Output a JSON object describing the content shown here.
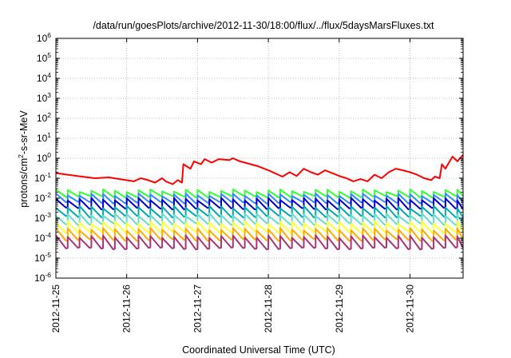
{
  "chart_data": {
    "type": "line",
    "title": "/data/run/goesPlots/archive/2012-11-30/18:00/flux/../flux/5daysMarsFluxes.txt",
    "xlabel": "Coordinated Universal Time (UTC)",
    "ylabel": "protons/cm²-s-sr-MeV",
    "ylabel_parts": {
      "pre": "protons/cm",
      "sup": "2",
      "post": "-s-sr-MeV"
    },
    "yscale": "log",
    "ylim": [
      1e-06,
      1000000.0
    ],
    "xlim": [
      "2012-11-25",
      "2012-11-30 18:00"
    ],
    "grid": true,
    "x_tick_labels": [
      "2012-11-25",
      "2012-11-26",
      "2012-11-27",
      "2012-11-28",
      "2012-11-29",
      "2012-11-30"
    ],
    "y_ticks": [
      {
        "base": "10",
        "exp": "-6"
      },
      {
        "base": "10",
        "exp": "-5"
      },
      {
        "base": "10",
        "exp": "-4"
      },
      {
        "base": "10",
        "exp": "-3"
      },
      {
        "base": "10",
        "exp": "-2"
      },
      {
        "base": "10",
        "exp": "-1"
      },
      {
        "base": "10",
        "exp": "0"
      },
      {
        "base": "10",
        "exp": "1"
      },
      {
        "base": "10",
        "exp": "2"
      },
      {
        "base": "10",
        "exp": "3"
      },
      {
        "base": "10",
        "exp": "4"
      },
      {
        "base": "10",
        "exp": "5"
      },
      {
        "base": "10",
        "exp": "6"
      }
    ],
    "x_days_total": 5.75,
    "series": [
      {
        "color": "#ff0000",
        "points": [
          [
            0,
            0.18
          ],
          [
            0.3,
            0.13
          ],
          [
            0.55,
            0.1
          ],
          [
            0.75,
            0.11
          ],
          [
            0.9,
            0.09
          ],
          [
            1.1,
            0.07
          ],
          [
            1.2,
            0.1
          ],
          [
            1.3,
            0.08
          ],
          [
            1.4,
            0.06
          ],
          [
            1.5,
            0.1
          ],
          [
            1.55,
            0.07
          ],
          [
            1.65,
            0.05
          ],
          [
            1.72,
            0.08
          ],
          [
            1.78,
            0.06
          ],
          [
            1.8,
            0.5
          ],
          [
            1.9,
            0.3
          ],
          [
            1.95,
            0.7
          ],
          [
            2.05,
            0.5
          ],
          [
            2.1,
            0.9
          ],
          [
            2.2,
            0.6
          ],
          [
            2.3,
            0.9
          ],
          [
            2.45,
            0.8
          ],
          [
            2.5,
            1.0
          ],
          [
            2.6,
            0.7
          ],
          [
            2.75,
            0.5
          ],
          [
            2.85,
            0.4
          ],
          [
            3.0,
            0.25
          ],
          [
            3.2,
            0.12
          ],
          [
            3.3,
            0.2
          ],
          [
            3.4,
            0.13
          ],
          [
            3.5,
            0.3
          ],
          [
            3.6,
            0.2
          ],
          [
            3.7,
            0.15
          ],
          [
            3.8,
            0.25
          ],
          [
            3.9,
            0.18
          ],
          [
            4.0,
            0.13
          ],
          [
            4.1,
            0.1
          ],
          [
            4.2,
            0.07
          ],
          [
            4.3,
            0.09
          ],
          [
            4.4,
            0.07
          ],
          [
            4.5,
            0.15
          ],
          [
            4.6,
            0.1
          ],
          [
            4.7,
            0.2
          ],
          [
            4.8,
            0.3
          ],
          [
            4.9,
            0.25
          ],
          [
            5.0,
            0.2
          ],
          [
            5.1,
            0.15
          ],
          [
            5.2,
            0.1
          ],
          [
            5.3,
            0.08
          ],
          [
            5.35,
            0.12
          ],
          [
            5.42,
            0.1
          ],
          [
            5.45,
            0.5
          ],
          [
            5.5,
            0.3
          ],
          [
            5.6,
            1.2
          ],
          [
            5.67,
            0.7
          ],
          [
            5.75,
            1.5
          ]
        ]
      },
      {
        "color": "#33ff33",
        "base": 0.012,
        "amp": 2.0
      },
      {
        "color": "#3388ff",
        "base": 0.006,
        "amp": 2.5
      },
      {
        "color": "#0000cc",
        "base": 0.003,
        "amp": 3.0
      },
      {
        "color": "#00aaaa",
        "base": 0.0012,
        "amp": 3.0
      },
      {
        "color": "#66ddcc",
        "base": 0.0005,
        "amp": 3.0
      },
      {
        "color": "#ffff33",
        "base": 0.0002,
        "amp": 3.0
      },
      {
        "color": "#ffaa00",
        "base": 8e-05,
        "amp": 3.5
      },
      {
        "color": "#aa3377",
        "base": 3e-05,
        "amp": 4.0
      }
    ]
  }
}
